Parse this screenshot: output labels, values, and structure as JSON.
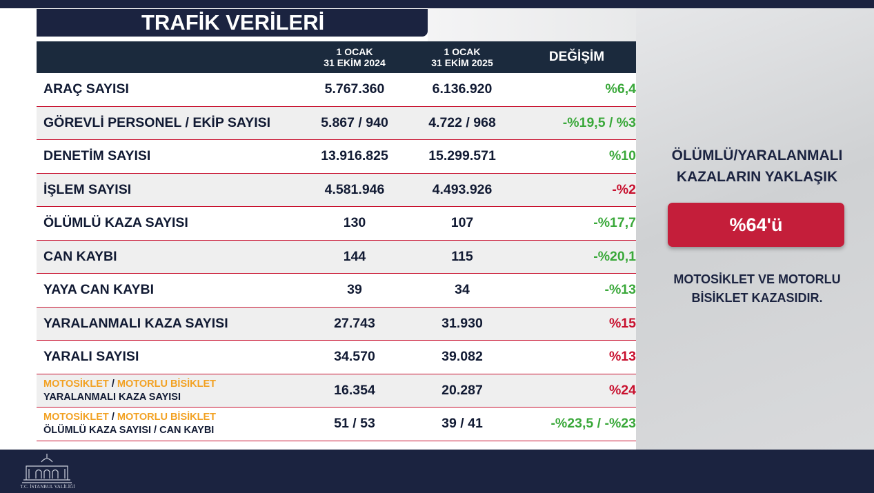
{
  "header": {
    "title": "TRAFİK VERİLERİ"
  },
  "table": {
    "columns": [
      {
        "line1": "1 OCAK",
        "line2": "31 EKİM 2024"
      },
      {
        "line1": "1 OCAK",
        "line2": "31 EKİM 2025"
      },
      {
        "line1": "DEĞİŞİM"
      }
    ],
    "rows": [
      {
        "label": "ARAÇ SAYISI",
        "v2024": "5.767.360",
        "v2025": "6.136.920",
        "change": "%6,4",
        "color": "#3aa83a"
      },
      {
        "label": "GÖREVLİ PERSONEL / EKİP SAYISI",
        "v2024": "5.867 / 940",
        "v2025": "4.722 / 968",
        "change": "-%19,5 / %3",
        "color": "#3aa83a"
      },
      {
        "label": "DENETİM SAYISI",
        "v2024": "13.916.825",
        "v2025": "15.299.571",
        "change": "%10",
        "color": "#3aa83a"
      },
      {
        "label": "İŞLEM SAYISI",
        "v2024": "4.581.946",
        "v2025": "4.493.926",
        "change": "-%2",
        "color": "#c8102e"
      },
      {
        "label": "ÖLÜMLÜ KAZA SAYISI",
        "v2024": "130",
        "v2025": "107",
        "change": "-%17,7",
        "color": "#3aa83a"
      },
      {
        "label": "CAN KAYBI",
        "v2024": "144",
        "v2025": "115",
        "change": "-%20,1",
        "color": "#3aa83a"
      },
      {
        "label": "YAYA CAN KAYBI",
        "v2024": "39",
        "v2025": "34",
        "change": "-%13",
        "color": "#3aa83a"
      },
      {
        "label": "YARALANMALI KAZA SAYISI",
        "v2024": "27.743",
        "v2025": "31.930",
        "change": "%15",
        "color": "#c8102e"
      },
      {
        "label": "YARALI SAYISI",
        "v2024": "34.570",
        "v2025": "39.082",
        "change": "%13",
        "color": "#c8102e"
      },
      {
        "highlight": [
          "MOTOSİKLET",
          "MOTORLU BİSİKLET"
        ],
        "separator": "/",
        "label": "YARALANMALI KAZA SAYISI",
        "v2024": "16.354",
        "v2025": "20.287",
        "change": "%24",
        "color": "#c8102e"
      },
      {
        "highlight": [
          "MOTOSİKLET",
          "MOTORLU BİSİKLET"
        ],
        "separator": "/",
        "label": "ÖLÜMLÜ KAZA SAYISI / CAN KAYBI",
        "v2024": "51 / 53",
        "v2025": "39 / 41",
        "change": "-%23,5 / -%23",
        "color": "#3aa83a"
      }
    ]
  },
  "side": {
    "heading": [
      "ÖLÜMLÜ/YARALANMALI",
      "KAZALARIN YAKLAŞIK"
    ],
    "highlight": "%64'ü",
    "footer": [
      "MOTOSİKLET VE MOTORLU",
      "BİSİKLET KAZASIDIR."
    ]
  },
  "logo": {
    "caption": "T.C. İSTANBUL VALİLİĞİ"
  }
}
